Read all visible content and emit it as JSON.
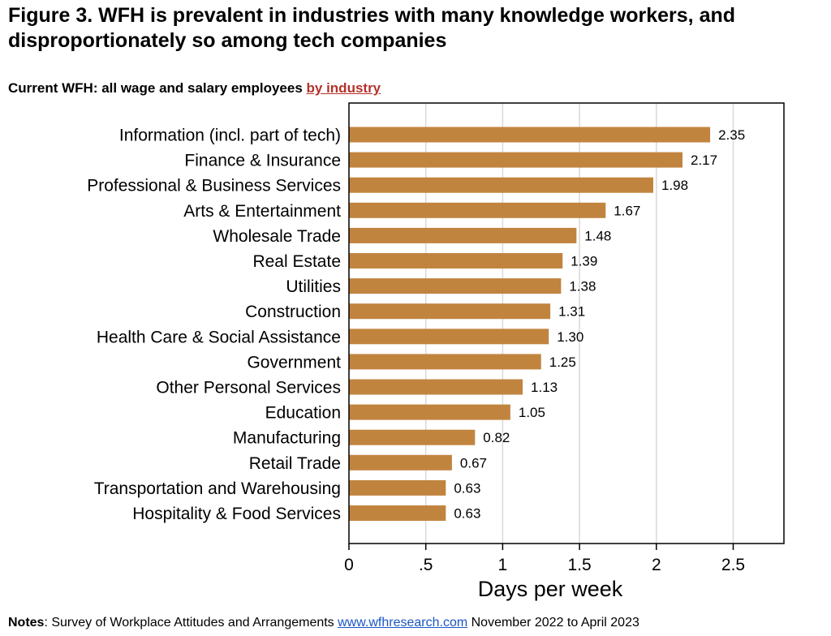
{
  "figure": {
    "title_line1": "Figure 3. WFH is prevalent in industries with many knowledge workers, and",
    "title_line2": "disproportionately so among tech companies",
    "subtitle_prefix": "Current WFH: all wage and salary employees ",
    "subtitle_link": "by industry"
  },
  "notes": {
    "label": "Notes",
    "text_before_link": ": Survey of Workplace Attitudes and Arrangements ",
    "link_text": "www.wfhresearch.com",
    "text_after_link": " November 2022 to April 2023"
  },
  "colors": {
    "bar": "#c1843f",
    "grid": "#d9d9d9",
    "frame": "#000000",
    "link_red": "#b5322a",
    "link_blue": "#1a56c4"
  },
  "chart_data": {
    "type": "bar",
    "orientation": "horizontal",
    "categories": [
      "Information (incl. part of tech)",
      "Finance & Insurance",
      "Professional & Business Services",
      "Arts & Entertainment",
      "Wholesale Trade",
      "Real Estate",
      "Utilities",
      "Construction",
      "Health Care & Social Assistance",
      "Government",
      "Other Personal Services",
      "Education",
      "Manufacturing",
      "Retail Trade",
      "Transportation and Warehousing",
      "Hospitality & Food Services"
    ],
    "values": [
      2.35,
      2.17,
      1.98,
      1.67,
      1.48,
      1.39,
      1.38,
      1.31,
      1.3,
      1.25,
      1.13,
      1.05,
      0.82,
      0.67,
      0.63,
      0.63
    ],
    "value_labels": [
      "2.35",
      "2.17",
      "1.98",
      "1.67",
      "1.48",
      "1.39",
      "1.38",
      "1.31",
      "1.30",
      "1.25",
      "1.13",
      "1.05",
      "0.82",
      "0.67",
      "0.63",
      "0.63"
    ],
    "xlabel": "Days per week",
    "xlim": [
      0,
      2.83
    ],
    "xticks": [
      0,
      0.5,
      1,
      1.5,
      2,
      2.5
    ],
    "xtick_labels": [
      "0",
      ".5",
      "1",
      "1.5",
      "2",
      "2.5"
    ],
    "grid": true
  }
}
